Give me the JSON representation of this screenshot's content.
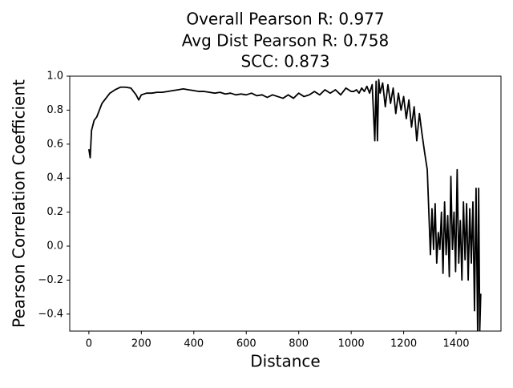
{
  "chart_data": {
    "type": "line",
    "title": [
      "Overall Pearson R: 0.977",
      "Avg Dist Pearson R: 0.758",
      "SCC: 0.873"
    ],
    "x_label": "Distance",
    "y_label": "Pearson Correlation Coefficient",
    "xlim": [
      -73,
      1571
    ],
    "ylim": [
      -0.5,
      1.0
    ],
    "xticks": [
      0,
      200,
      400,
      600,
      800,
      1000,
      1200,
      1400
    ],
    "yticks": [
      {
        "value": -0.4,
        "label": "−0.4"
      },
      {
        "value": -0.2,
        "label": "−0.2"
      },
      {
        "value": 0,
        "label": "0.0"
      },
      0.2,
      0.4,
      0.6,
      0.8,
      {
        "value": 1.0,
        "label": "1.0"
      }
    ],
    "series": [
      {
        "color": "#000000",
        "x": [
          0,
          5,
          10,
          20,
          30,
          40,
          50,
          60,
          80,
          100,
          120,
          140,
          160,
          180,
          190,
          200,
          220,
          240,
          260,
          280,
          300,
          320,
          340,
          360,
          380,
          400,
          420,
          440,
          460,
          480,
          500,
          520,
          540,
          560,
          580,
          600,
          620,
          640,
          660,
          680,
          700,
          720,
          740,
          760,
          780,
          800,
          820,
          840,
          860,
          880,
          900,
          920,
          940,
          960,
          980,
          1000,
          1010,
          1020,
          1030,
          1040,
          1050,
          1060,
          1070,
          1080,
          1090,
          1095,
          1100,
          1105,
          1110,
          1120,
          1130,
          1140,
          1150,
          1160,
          1170,
          1180,
          1190,
          1200,
          1210,
          1220,
          1230,
          1240,
          1250,
          1260,
          1270,
          1280,
          1290,
          1296,
          1302,
          1308,
          1314,
          1320,
          1326,
          1332,
          1338,
          1344,
          1350,
          1356,
          1362,
          1368,
          1374,
          1380,
          1386,
          1392,
          1398,
          1404,
          1410,
          1416,
          1422,
          1428,
          1434,
          1440,
          1446,
          1452,
          1458,
          1464,
          1470,
          1476,
          1482,
          1486,
          1490,
          1494
        ],
        "values": [
          0.57,
          0.52,
          0.68,
          0.74,
          0.76,
          0.8,
          0.84,
          0.86,
          0.9,
          0.92,
          0.935,
          0.935,
          0.93,
          0.89,
          0.86,
          0.89,
          0.9,
          0.9,
          0.905,
          0.905,
          0.91,
          0.915,
          0.92,
          0.925,
          0.92,
          0.915,
          0.91,
          0.91,
          0.905,
          0.9,
          0.905,
          0.895,
          0.9,
          0.89,
          0.895,
          0.89,
          0.9,
          0.885,
          0.89,
          0.875,
          0.89,
          0.88,
          0.87,
          0.89,
          0.87,
          0.9,
          0.88,
          0.89,
          0.91,
          0.89,
          0.92,
          0.9,
          0.92,
          0.89,
          0.93,
          0.91,
          0.91,
          0.92,
          0.9,
          0.93,
          0.91,
          0.94,
          0.9,
          0.95,
          0.62,
          0.97,
          0.62,
          0.98,
          0.9,
          0.96,
          0.82,
          0.95,
          0.84,
          0.93,
          0.78,
          0.9,
          0.8,
          0.88,
          0.75,
          0.86,
          0.7,
          0.82,
          0.62,
          0.78,
          0.66,
          0.55,
          0.45,
          0.2,
          -0.05,
          0.22,
          -0.02,
          0.25,
          -0.1,
          0.08,
          -0.02,
          0.2,
          -0.16,
          0.26,
          -0.05,
          0.18,
          -0.18,
          0.41,
          -0.02,
          0.2,
          -0.15,
          0.45,
          -0.1,
          0.15,
          -0.2,
          0.26,
          -0.08,
          0.25,
          -0.2,
          0.22,
          -0.1,
          0.26,
          -0.38,
          0.34,
          -0.5,
          0.34,
          -0.5,
          -0.28
        ]
      }
    ]
  }
}
